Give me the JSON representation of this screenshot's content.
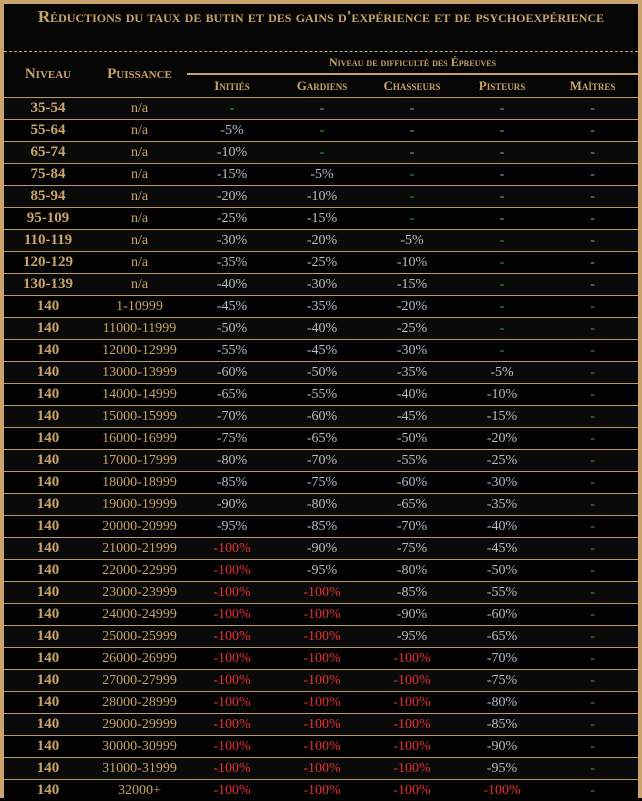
{
  "title": "Réductions du taux de butin et des gains d'expérience et de psychoexpérience",
  "headers": {
    "level": "Niveau",
    "power": "Puissance",
    "group": "Niveau de difficulté des Épreuves",
    "tiers": [
      "Initiés",
      "Gardiens",
      "Chasseurs",
      "Pisteurs",
      "Maîtres"
    ]
  },
  "colors": {
    "gold": "#c9a468",
    "red": "#e83030",
    "green_zero": "#2fae2f",
    "gray": "#b7bdc6"
  },
  "rows": [
    {
      "level": "35-54",
      "power": "n/a",
      "cells": [
        "-",
        "-",
        "-",
        "-",
        "-"
      ],
      "green_cols": [
        0
      ]
    },
    {
      "level": "55-64",
      "power": "n/a",
      "cells": [
        "-5%",
        "-",
        "-",
        "-",
        "-"
      ],
      "green_cols": [
        1
      ]
    },
    {
      "level": "65-74",
      "power": "n/a",
      "cells": [
        "-10%",
        "-",
        "-",
        "-",
        "-"
      ],
      "green_cols": [
        1
      ]
    },
    {
      "level": "75-84",
      "power": "n/a",
      "cells": [
        "-15%",
        "-5%",
        "-",
        "-",
        "-"
      ],
      "green_cols": [
        2
      ]
    },
    {
      "level": "85-94",
      "power": "n/a",
      "cells": [
        "-20%",
        "-10%",
        "-",
        "-",
        "-"
      ],
      "green_cols": [
        2
      ]
    },
    {
      "level": "95-109",
      "power": "n/a",
      "cells": [
        "-25%",
        "-15%",
        "-",
        "-",
        "-"
      ],
      "green_cols": [
        2
      ]
    },
    {
      "level": "110-119",
      "power": "n/a",
      "cells": [
        "-30%",
        "-20%",
        "-5%",
        "-",
        "-"
      ],
      "green_cols": [
        3
      ]
    },
    {
      "level": "120-129",
      "power": "n/a",
      "cells": [
        "-35%",
        "-25%",
        "-10%",
        "-",
        "-"
      ],
      "green_cols": [
        3
      ]
    },
    {
      "level": "130-139",
      "power": "n/a",
      "cells": [
        "-40%",
        "-30%",
        "-15%",
        "-",
        "-"
      ],
      "green_cols": [
        3
      ]
    },
    {
      "level": "140",
      "power": "1-10999",
      "cells": [
        "-45%",
        "-35%",
        "-20%",
        "-",
        "-"
      ],
      "green_cols": [
        3,
        4
      ]
    },
    {
      "level": "140",
      "power": "11000-11999",
      "cells": [
        "-50%",
        "-40%",
        "-25%",
        "-",
        "-"
      ],
      "green_cols": [
        3,
        4
      ]
    },
    {
      "level": "140",
      "power": "12000-12999",
      "cells": [
        "-55%",
        "-45%",
        "-30%",
        "-",
        "-"
      ],
      "green_cols": [
        3,
        4
      ]
    },
    {
      "level": "140",
      "power": "13000-13999",
      "cells": [
        "-60%",
        "-50%",
        "-35%",
        "-5%",
        "-"
      ],
      "green_cols": [
        4
      ]
    },
    {
      "level": "140",
      "power": "14000-14999",
      "cells": [
        "-65%",
        "-55%",
        "-40%",
        "-10%",
        "-"
      ],
      "green_cols": [
        4
      ]
    },
    {
      "level": "140",
      "power": "15000-15999",
      "cells": [
        "-70%",
        "-60%",
        "-45%",
        "-15%",
        "-"
      ],
      "green_cols": [
        4
      ]
    },
    {
      "level": "140",
      "power": "16000-16999",
      "cells": [
        "-75%",
        "-65%",
        "-50%",
        "-20%",
        "-"
      ],
      "green_cols": [
        4
      ]
    },
    {
      "level": "140",
      "power": "17000-17999",
      "cells": [
        "-80%",
        "-70%",
        "-55%",
        "-25%",
        "-"
      ],
      "green_cols": [
        4
      ]
    },
    {
      "level": "140",
      "power": "18000-18999",
      "cells": [
        "-85%",
        "-75%",
        "-60%",
        "-30%",
        "-"
      ],
      "green_cols": [
        4
      ]
    },
    {
      "level": "140",
      "power": "19000-19999",
      "cells": [
        "-90%",
        "-80%",
        "-65%",
        "-35%",
        "-"
      ],
      "green_cols": [
        4
      ]
    },
    {
      "level": "140",
      "power": "20000-20999",
      "cells": [
        "-95%",
        "-85%",
        "-70%",
        "-40%",
        "-"
      ],
      "green_cols": [
        4
      ]
    },
    {
      "level": "140",
      "power": "21000-21999",
      "cells": [
        "-100%",
        "-90%",
        "-75%",
        "-45%",
        "-"
      ],
      "green_cols": [
        4
      ]
    },
    {
      "level": "140",
      "power": "22000-22999",
      "cells": [
        "-100%",
        "-95%",
        "-80%",
        "-50%",
        "-"
      ],
      "green_cols": [
        4
      ]
    },
    {
      "level": "140",
      "power": "23000-23999",
      "cells": [
        "-100%",
        "-100%",
        "-85%",
        "-55%",
        "-"
      ],
      "green_cols": [
        4
      ]
    },
    {
      "level": "140",
      "power": "24000-24999",
      "cells": [
        "-100%",
        "-100%",
        "-90%",
        "-60%",
        "-"
      ],
      "green_cols": [
        4
      ]
    },
    {
      "level": "140",
      "power": "25000-25999",
      "cells": [
        "-100%",
        "-100%",
        "-95%",
        "-65%",
        "-"
      ],
      "green_cols": [
        4
      ]
    },
    {
      "level": "140",
      "power": "26000-26999",
      "cells": [
        "-100%",
        "-100%",
        "-100%",
        "-70%",
        "-"
      ],
      "green_cols": [
        4
      ]
    },
    {
      "level": "140",
      "power": "27000-27999",
      "cells": [
        "-100%",
        "-100%",
        "-100%",
        "-75%",
        "-"
      ],
      "green_cols": [
        4
      ]
    },
    {
      "level": "140",
      "power": "28000-28999",
      "cells": [
        "-100%",
        "-100%",
        "-100%",
        "-80%",
        "-"
      ],
      "green_cols": [
        4
      ]
    },
    {
      "level": "140",
      "power": "29000-29999",
      "cells": [
        "-100%",
        "-100%",
        "-100%",
        "-85%",
        "-"
      ],
      "green_cols": [
        4
      ]
    },
    {
      "level": "140",
      "power": "30000-30999",
      "cells": [
        "-100%",
        "-100%",
        "-100%",
        "-90%",
        "-"
      ],
      "green_cols": [
        4
      ]
    },
    {
      "level": "140",
      "power": "31000-31999",
      "cells": [
        "-100%",
        "-100%",
        "-100%",
        "-95%",
        "-"
      ],
      "green_cols": [
        4
      ]
    },
    {
      "level": "140",
      "power": "32000+",
      "cells": [
        "-100%",
        "-100%",
        "-100%",
        "-100%",
        "-"
      ],
      "green_cols": [
        4
      ]
    }
  ]
}
